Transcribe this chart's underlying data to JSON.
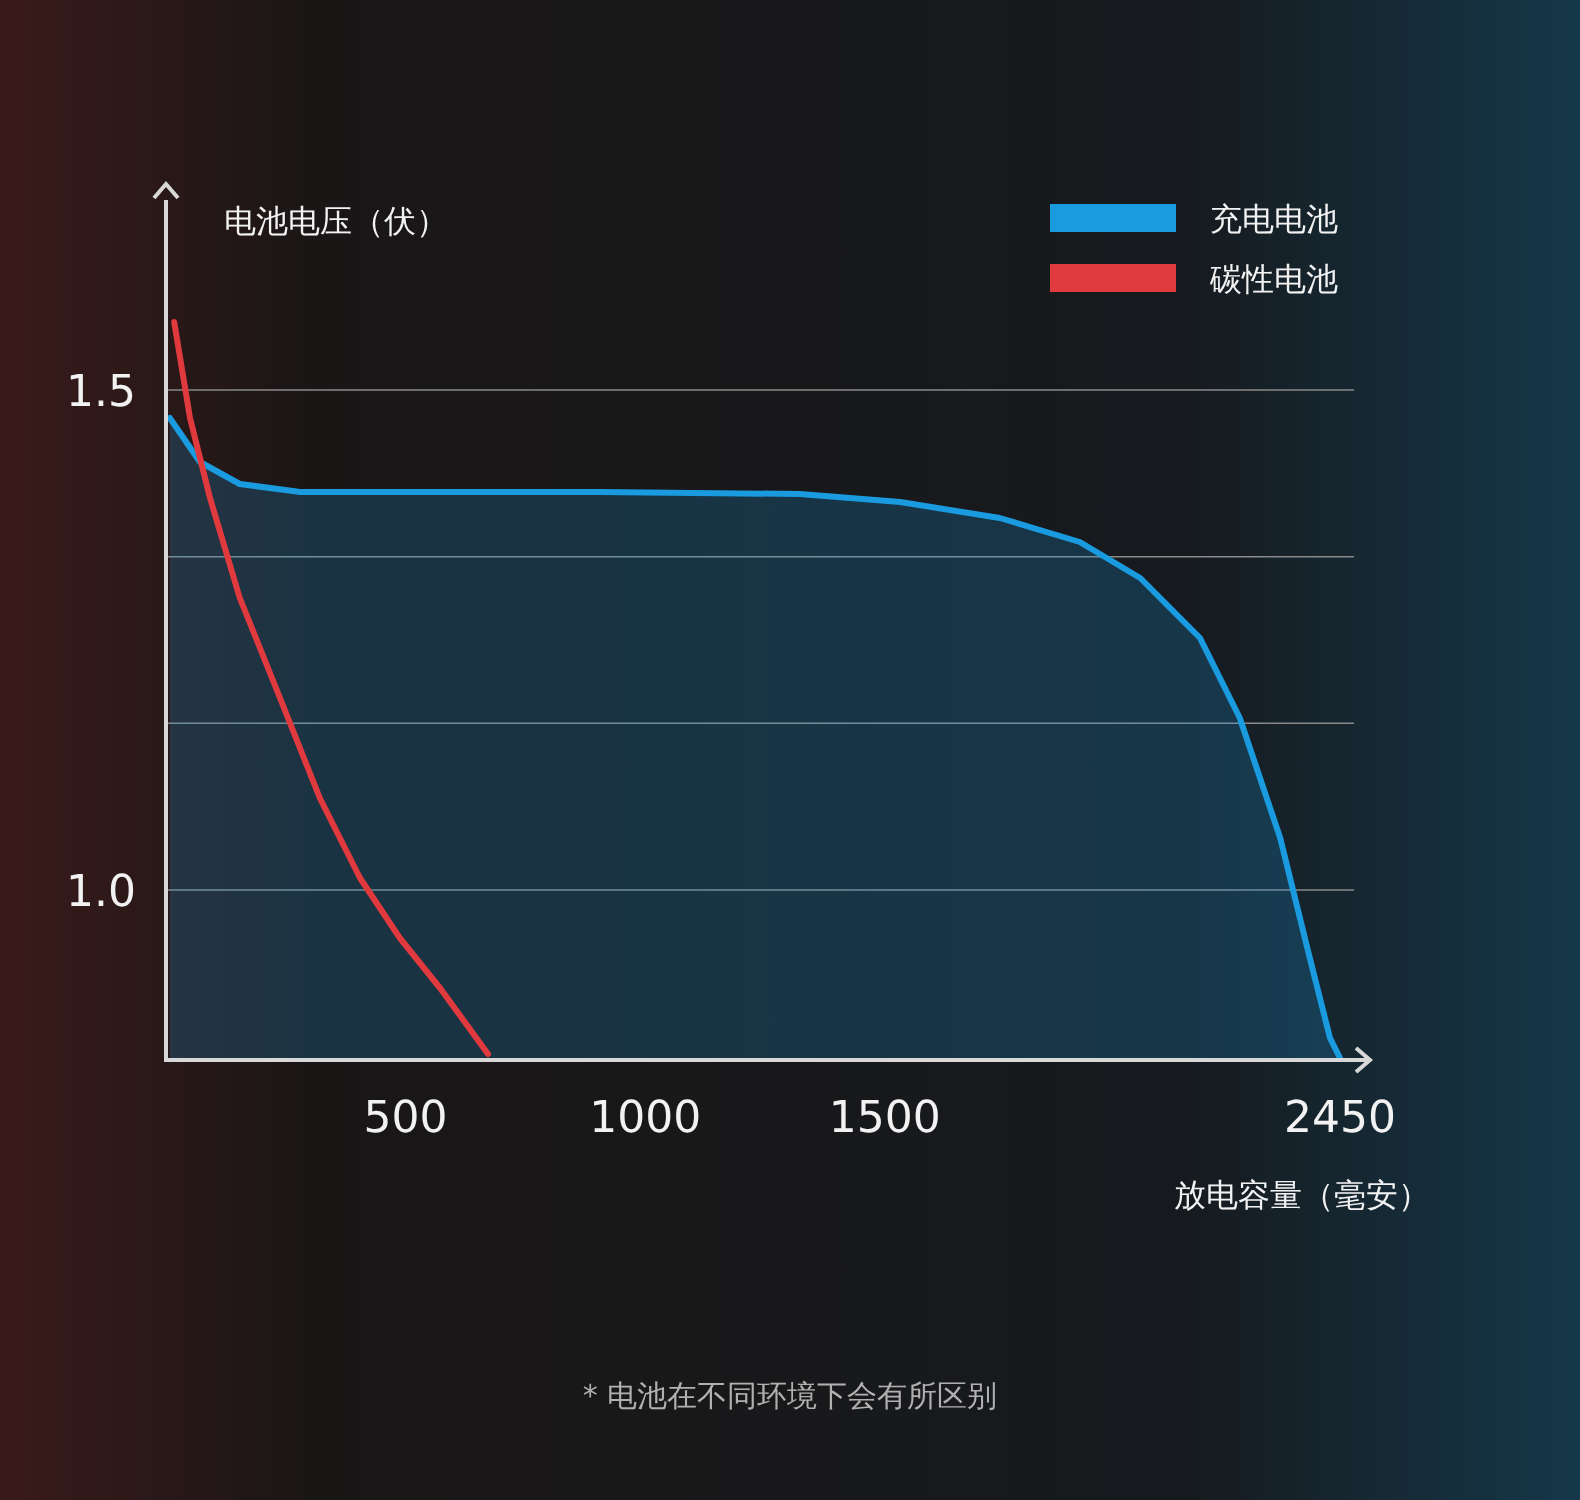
{
  "chart_data": {
    "type": "line",
    "xlabel": "放电容量（毫安）",
    "ylabel": "电池电压（伏）",
    "xlim": [
      0,
      2450
    ],
    "xticks": [
      500,
      1000,
      1500,
      2450
    ],
    "ylim": [
      0.83,
      1.69
    ],
    "yticks": [
      {
        "value": 1,
        "label": "1.0"
      },
      {
        "value": 1.1667,
        "label": null
      },
      {
        "value": 1.3333,
        "label": null
      },
      1.5
    ],
    "grid": "y",
    "legend": "top right",
    "annotations": [
      "* 电池在不同环境下会有所区别"
    ],
    "series": [
      {
        "name": "充电电池",
        "type": "area",
        "color": "#1a9be0",
        "x": [
          8,
          71,
          154,
          280,
          906,
          1323,
          1532,
          1740,
          1907,
          2033,
          2158,
          2241,
          2325,
          2387,
          2429,
          2450
        ],
        "values": [
          1.472,
          1.428,
          1.406,
          1.398,
          1.398,
          1.396,
          1.388,
          1.372,
          1.348,
          1.312,
          1.252,
          1.172,
          1.052,
          0.932,
          0.852,
          0.832
        ]
      },
      {
        "name": "碳性电池",
        "color": "#e0393e",
        "x": [
          17,
          50,
          92,
          154,
          238,
          321,
          405,
          488,
          572,
          672
        ],
        "values": [
          1.568,
          1.472,
          1.392,
          1.292,
          1.192,
          1.092,
          1.012,
          0.952,
          0.902,
          0.836
        ]
      }
    ]
  }
}
